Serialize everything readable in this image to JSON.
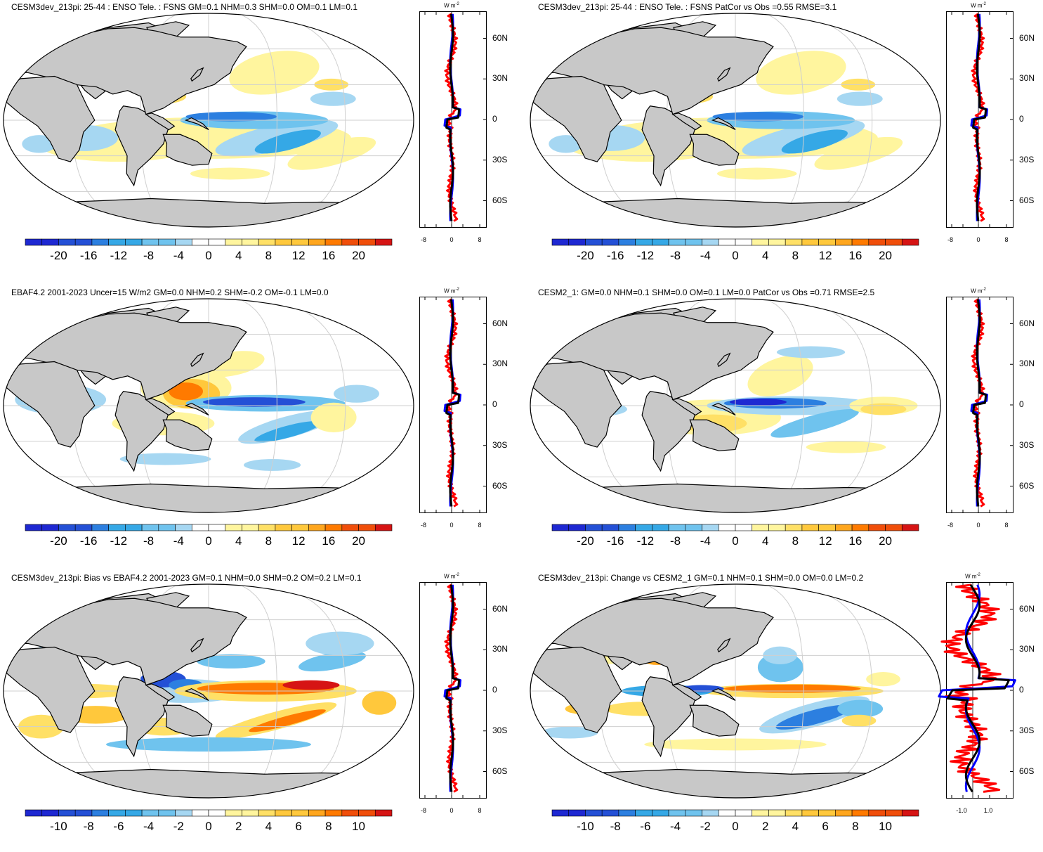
{
  "colors": {
    "land": "#c8c8c8",
    "coast": "#000000",
    "grid": "#cfcfcf",
    "ocean": "#ffffff",
    "pos": [
      "#fff59e",
      "#ffe066",
      "#ffc83c",
      "#ffa61e",
      "#ff7a00",
      "#f04e0a",
      "#d61414"
    ],
    "neg": [
      "#a6d7f2",
      "#6fc3ee",
      "#35a8e6",
      "#2c7fe0",
      "#2450d6",
      "#1e28d2"
    ],
    "line_red": "#ff0000",
    "line_blue": "#0000ff",
    "line_black": "#000000"
  },
  "panels": [
    {
      "id": "p1",
      "title": "CESM3dev_213pi: 25-44 : ENSO Tele. : FSNS GM=0.1 NHM=0.3 SHM=0.0 OM=0.1 LM=0.1",
      "colorbar_ticks": [
        "-20",
        "-16",
        "-12",
        "-8",
        "-4",
        "0",
        "4",
        "8",
        "12",
        "16",
        "20"
      ],
      "lineplot_xticks": [
        "-8",
        "0",
        "8"
      ],
      "lat_labels": [
        "60N",
        "30N",
        "0",
        "30S",
        "60S"
      ],
      "unit": "W m",
      "unit_sup": "-2",
      "pattern": "model"
    },
    {
      "id": "p2",
      "title": "CESM3dev_213pi: 25-44 : ENSO Tele. : FSNS PatCor vs Obs =0.55 RMSE=3.1",
      "colorbar_ticks": [
        "-20",
        "-16",
        "-12",
        "-8",
        "-4",
        "0",
        "4",
        "8",
        "12",
        "16",
        "20"
      ],
      "lineplot_xticks": [
        "-8",
        "0",
        "8"
      ],
      "lat_labels": [
        "60N",
        "30N",
        "0",
        "30S",
        "60S"
      ],
      "unit": "W m",
      "unit_sup": "-2",
      "pattern": "model"
    },
    {
      "id": "p3",
      "title": "EBAF4.2 2001-2023 Uncer=15 W/m2 GM=0.0 NHM=0.2 SHM=-0.2 OM=-0.1 LM=0.0",
      "colorbar_ticks": [
        "-20",
        "-16",
        "-12",
        "-8",
        "-4",
        "0",
        "4",
        "8",
        "12",
        "16",
        "20"
      ],
      "lineplot_xticks": [
        "-8",
        "0",
        "8"
      ],
      "lat_labels": [
        "60N",
        "30N",
        "0",
        "30S",
        "60S"
      ],
      "unit": "W m",
      "unit_sup": "-2",
      "pattern": "obs"
    },
    {
      "id": "p4",
      "title": "CESM2_1: GM=0.0 NHM=0.1 SHM=0.0 OM=0.1 LM=0.0 PatCor vs Obs =0.71 RMSE=2.5",
      "colorbar_ticks": [
        "-20",
        "-16",
        "-12",
        "-8",
        "-4",
        "0",
        "4",
        "8",
        "12",
        "16",
        "20"
      ],
      "lineplot_xticks": [
        "-8",
        "0",
        "8"
      ],
      "lat_labels": [
        "60N",
        "30N",
        "0",
        "30S",
        "60S"
      ],
      "unit": "W m",
      "unit_sup": "-2",
      "pattern": "cesm2"
    },
    {
      "id": "p5",
      "title": "CESM3dev_213pi: Bias vs EBAF4.2 2001-2023 GM=0.1 NHM=0.0 SHM=0.2 OM=0.2 LM=0.1",
      "colorbar_ticks": [
        "-10",
        "-8",
        "-6",
        "-4",
        "-2",
        "0",
        "2",
        "4",
        "6",
        "8",
        "10"
      ],
      "lineplot_xticks": [
        "-8",
        "0",
        "8"
      ],
      "lat_labels": [
        "60N",
        "30N",
        "0",
        "30S",
        "60S"
      ],
      "unit": "W m",
      "unit_sup": "-2",
      "pattern": "bias"
    },
    {
      "id": "p6",
      "title": "CESM3dev_213pi: Change vs CESM2_1 GM=0.1 NHM=0.1 SHM=0.0 OM=0.0 LM=0.2",
      "colorbar_ticks": [
        "-10",
        "-8",
        "-6",
        "-4",
        "-2",
        "0",
        "2",
        "4",
        "6",
        "8",
        "10"
      ],
      "lineplot_xticks": [
        "-1.0",
        "1.0"
      ],
      "lat_labels": [
        "60N",
        "30N",
        "0",
        "30S",
        "60S"
      ],
      "unit": "W m",
      "unit_sup": "-2",
      "pattern": "change"
    }
  ],
  "chart_data": [
    {
      "type": "heatmap",
      "title": "CESM3dev_213pi: 25-44 : ENSO Tele. : FSNS GM=0.1 NHM=0.3 SHM=0.0 OM=0.1 LM=0.1",
      "colorbar_range": [
        -20,
        20
      ],
      "zonal_mean_xlim": [
        -8,
        8
      ],
      "zonal_mean_series": [
        {
          "lat": [
            75,
            60,
            45,
            30,
            15,
            5,
            0,
            -5,
            -15,
            -30,
            -45,
            -60,
            -75
          ],
          "values": [
            0.2,
            0.1,
            0.3,
            0.4,
            0.5,
            1.5,
            -1.2,
            -0.8,
            0.6,
            0.9,
            0.4,
            0.2,
            -0.1
          ]
        }
      ]
    },
    {
      "type": "heatmap",
      "title": "CESM3dev_213pi: 25-44 : ENSO Tele. : FSNS PatCor vs Obs =0.55 RMSE=3.1",
      "colorbar_range": [
        -20,
        20
      ],
      "zonal_mean_xlim": [
        -8,
        8
      ]
    },
    {
      "type": "heatmap",
      "title": "EBAF4.2 2001-2023 Uncer=15 W/m2 GM=0.0 NHM=0.2 SHM=-0.2 OM=-0.1 LM=0.0",
      "colorbar_range": [
        -20,
        20
      ],
      "zonal_mean_xlim": [
        -8,
        8
      ],
      "zonal_mean_series": [
        {
          "lat": [
            75,
            60,
            45,
            30,
            15,
            5,
            0,
            -5,
            -15,
            -30,
            -45,
            -60,
            -75
          ],
          "values": [
            0.5,
            0.2,
            0.4,
            0.9,
            1.8,
            1.2,
            -2.5,
            -1.0,
            0.8,
            -0.6,
            -1.2,
            0.3,
            -1.5
          ]
        }
      ]
    },
    {
      "type": "heatmap",
      "title": "CESM2_1: GM=0.0 NHM=0.1 SHM=0.0 OM=0.1 LM=0.0 PatCor vs Obs =0.71 RMSE=2.5",
      "colorbar_range": [
        -20,
        20
      ],
      "zonal_mean_xlim": [
        -8,
        8
      ],
      "zonal_mean_series": [
        {
          "lat": [
            75,
            60,
            45,
            30,
            15,
            5,
            0,
            -5,
            -15,
            -30,
            -45,
            -60,
            -75
          ],
          "values": [
            0.1,
            0.0,
            0.2,
            0.3,
            1.0,
            1.8,
            -2.2,
            -1.5,
            0.3,
            0.2,
            0.1,
            0.0,
            -0.3
          ]
        }
      ]
    },
    {
      "type": "heatmap",
      "title": "CESM3dev_213pi: Bias vs EBAF4.2 2001-2023 GM=0.1 NHM=0.0 SHM=0.2 OM=0.2 LM=0.1",
      "colorbar_range": [
        -10,
        10
      ],
      "zonal_mean_xlim": [
        -8,
        8
      ],
      "zonal_mean_series": [
        {
          "lat": [
            75,
            60,
            45,
            30,
            15,
            5,
            0,
            -5,
            -15,
            -30,
            -45,
            -60,
            -75
          ],
          "values": [
            -0.3,
            0.1,
            0.5,
            -0.2,
            -0.5,
            0.8,
            1.2,
            0.5,
            1.1,
            0.9,
            1.4,
            0.2,
            1.0
          ]
        }
      ]
    },
    {
      "type": "heatmap",
      "title": "CESM3dev_213pi: Change vs CESM2_1 GM=0.1 NHM=0.1 SHM=0.0 OM=0.0 LM=0.2",
      "colorbar_range": [
        -10,
        10
      ],
      "zonal_mean_xlim": [
        -2,
        2
      ],
      "zonal_mean_series": [
        {
          "lat": [
            75,
            60,
            45,
            30,
            15,
            5,
            0,
            -5,
            -15,
            -30,
            -45,
            -60,
            -75
          ],
          "values": [
            0.1,
            -0.3,
            0.4,
            -0.5,
            0.5,
            0.4,
            1.3,
            -0.9,
            0.6,
            -0.8,
            0.7,
            0.3,
            0.2
          ]
        }
      ]
    }
  ]
}
